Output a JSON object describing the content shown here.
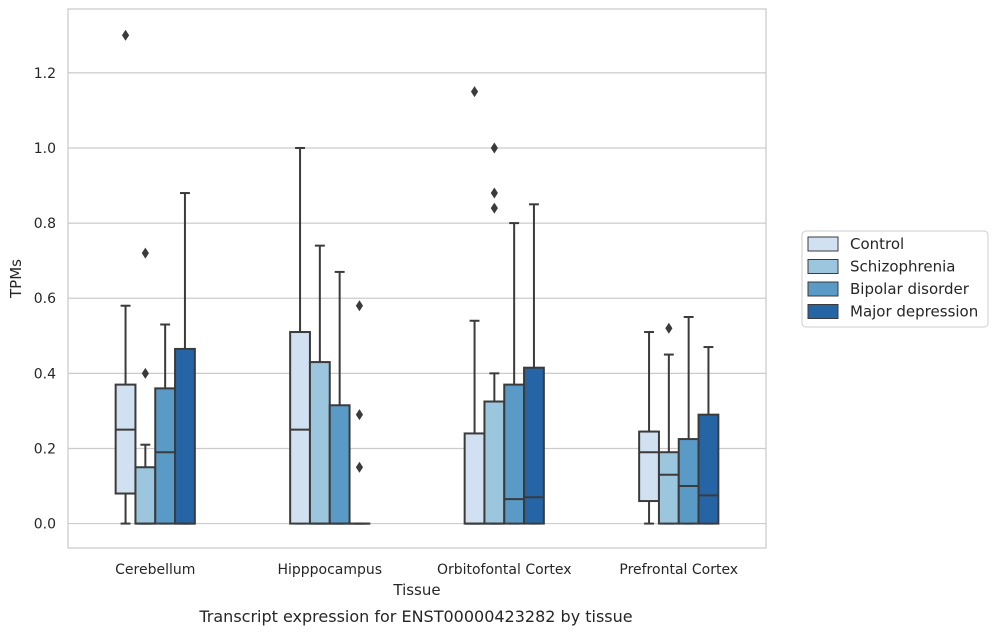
{
  "caption": "Transcript expression for ENST00000423282 by tissue",
  "chart_data": {
    "type": "box",
    "xlabel": "Tissue",
    "ylabel": "TPMs",
    "ylim": [
      -0.065,
      1.37
    ],
    "yticks": [
      0.0,
      0.2,
      0.4,
      0.6,
      0.8,
      1.0,
      1.2
    ],
    "ytick_labels": [
      "0.0",
      "0.2",
      "0.4",
      "0.6",
      "0.8",
      "1.0",
      "1.2"
    ],
    "grid": "horizontal",
    "legend_position": "right",
    "categories": [
      "Cerebellum",
      "Hipppocampus",
      "Orbitofontal Cortex",
      "Prefrontal Cortex"
    ],
    "series": [
      {
        "name": "Control",
        "color": "#d1e1f1",
        "boxes": [
          {
            "whislo": 0.0,
            "q1": 0.08,
            "med": 0.25,
            "q3": 0.37,
            "whishi": 0.58,
            "fliers": [
              1.3
            ]
          },
          {
            "whislo": 0.0,
            "q1": 0.0,
            "med": 0.25,
            "q3": 0.51,
            "whishi": 1.0,
            "fliers": []
          },
          {
            "whislo": 0.0,
            "q1": 0.0,
            "med": 0.0,
            "q3": 0.24,
            "whishi": 0.54,
            "fliers": [
              1.15
            ]
          },
          {
            "whislo": 0.0,
            "q1": 0.06,
            "med": 0.19,
            "q3": 0.245,
            "whishi": 0.51,
            "fliers": []
          }
        ]
      },
      {
        "name": "Schizophrenia",
        "color": "#9bc6dd",
        "boxes": [
          {
            "whislo": 0.0,
            "q1": 0.0,
            "med": 0.0,
            "q3": 0.15,
            "whishi": 0.21,
            "fliers": [
              0.72,
              0.4
            ]
          },
          {
            "whislo": 0.0,
            "q1": 0.0,
            "med": 0.0,
            "q3": 0.43,
            "whishi": 0.74,
            "fliers": []
          },
          {
            "whislo": 0.0,
            "q1": 0.0,
            "med": 0.0,
            "q3": 0.325,
            "whishi": 0.4,
            "fliers": [
              1.0,
              0.88,
              0.84
            ]
          },
          {
            "whislo": 0.0,
            "q1": 0.0,
            "med": 0.13,
            "q3": 0.19,
            "whishi": 0.45,
            "fliers": [
              0.52
            ]
          }
        ]
      },
      {
        "name": "Bipolar disorder",
        "color": "#5a9ac6",
        "boxes": [
          {
            "whislo": 0.0,
            "q1": 0.0,
            "med": 0.19,
            "q3": 0.36,
            "whishi": 0.53,
            "fliers": []
          },
          {
            "whislo": 0.0,
            "q1": 0.0,
            "med": 0.0,
            "q3": 0.315,
            "whishi": 0.67,
            "fliers": []
          },
          {
            "whislo": 0.0,
            "q1": 0.0,
            "med": 0.065,
            "q3": 0.37,
            "whishi": 0.8,
            "fliers": []
          },
          {
            "whislo": 0.0,
            "q1": 0.0,
            "med": 0.1,
            "q3": 0.225,
            "whishi": 0.55,
            "fliers": []
          }
        ]
      },
      {
        "name": "Major depression",
        "color": "#2565a6",
        "boxes": [
          {
            "whislo": 0.0,
            "q1": 0.0,
            "med": 0.0,
            "q3": 0.465,
            "whishi": 0.88,
            "fliers": []
          },
          {
            "whislo": 0.0,
            "q1": 0.0,
            "med": 0.0,
            "q3": 0.0,
            "whishi": 0.0,
            "fliers": [
              0.58,
              0.29,
              0.15
            ]
          },
          {
            "whislo": 0.0,
            "q1": 0.0,
            "med": 0.07,
            "q3": 0.415,
            "whishi": 0.85,
            "fliers": []
          },
          {
            "whislo": 0.0,
            "q1": 0.0,
            "med": 0.075,
            "q3": 0.29,
            "whishi": 0.47,
            "fliers": []
          }
        ]
      }
    ]
  }
}
